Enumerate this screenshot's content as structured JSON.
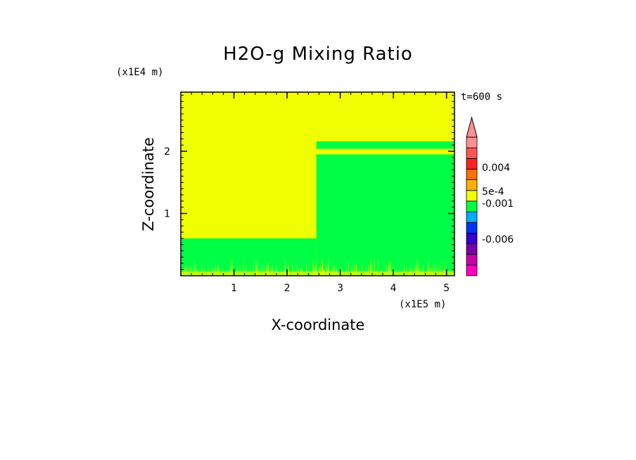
{
  "chart_data": {
    "type": "heatmap",
    "title": "H2O-g Mixing Ratio",
    "xlabel": "X-coordinate",
    "ylabel": "Z-coordinate",
    "x_multiplier": "(x1E5 m)",
    "y_multiplier": "(x1E4 m)",
    "time_label": "t=600 s",
    "xlim": [
      0,
      5.15
    ],
    "ylim": [
      0,
      2.95
    ],
    "x_ticks": [
      "1",
      "2",
      "3",
      "4",
      "5"
    ],
    "y_ticks": [
      "1",
      "2"
    ],
    "regions": [
      {
        "x": [
          0,
          5.15
        ],
        "y": [
          0,
          2.95
        ],
        "color": "#f0ff00"
      },
      {
        "x": [
          0,
          2.55
        ],
        "y": [
          0,
          0.6
        ],
        "color": "#00ff44"
      },
      {
        "x": [
          2.55,
          5.15
        ],
        "y": [
          0,
          1.95
        ],
        "color": "#00ff44"
      },
      {
        "x": [
          2.55,
          5.15
        ],
        "y": [
          2.04,
          2.16
        ],
        "color": "#00ff44"
      }
    ],
    "near_surface_band": {
      "y": [
        0,
        0.35
      ],
      "color": "#f0ff00"
    },
    "colorbar": {
      "colors": [
        "#ff00c0",
        "#cc00aa",
        "#7700aa",
        "#3300cc",
        "#0033ff",
        "#00aaff",
        "#00ff44",
        "#f0ff00",
        "#ffb000",
        "#ff7000",
        "#ff2020",
        "#ff5555",
        "#ff9090"
      ],
      "labels": [
        "-0.006",
        "-0.001",
        "5e-4",
        "0.004"
      ],
      "extend_max": true
    }
  }
}
